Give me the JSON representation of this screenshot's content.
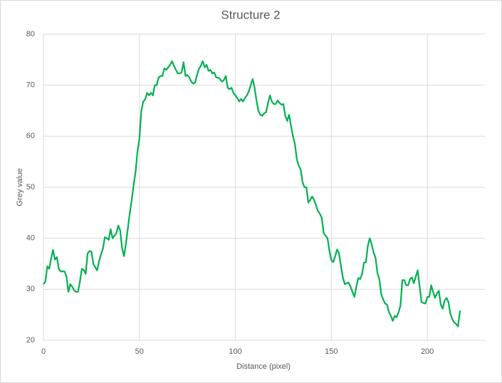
{
  "chart_data": {
    "type": "line",
    "title": "Structure 2",
    "x_label": "Distance (pixel)",
    "y_label": "Grey value",
    "x": [
      0,
      1,
      2,
      3,
      4,
      5,
      6,
      7,
      8,
      9,
      10,
      11,
      12,
      13,
      14,
      15,
      16,
      17,
      18,
      19,
      20,
      21,
      22,
      23,
      24,
      25,
      26,
      27,
      28,
      29,
      30,
      31,
      32,
      33,
      34,
      35,
      36,
      37,
      38,
      39,
      40,
      41,
      42,
      43,
      44,
      45,
      46,
      47,
      48,
      49,
      50,
      51,
      52,
      53,
      54,
      55,
      56,
      57,
      58,
      59,
      60,
      61,
      62,
      63,
      64,
      65,
      66,
      67,
      68,
      69,
      70,
      71,
      72,
      73,
      74,
      75,
      76,
      77,
      78,
      79,
      80,
      81,
      82,
      83,
      84,
      85,
      86,
      87,
      88,
      89,
      90,
      91,
      92,
      93,
      94,
      95,
      96,
      97,
      98,
      99,
      100,
      101,
      102,
      103,
      104,
      105,
      106,
      107,
      108,
      109,
      110,
      111,
      112,
      113,
      114,
      115,
      116,
      117,
      118,
      119,
      120,
      121,
      122,
      123,
      124,
      125,
      126,
      127,
      128,
      129,
      130,
      131,
      132,
      133,
      134,
      135,
      136,
      137,
      138,
      139,
      140,
      141,
      142,
      143,
      144,
      145,
      146,
      147,
      148,
      149,
      150,
      151,
      152,
      153,
      154,
      155,
      156,
      157,
      158,
      159,
      160,
      161,
      162,
      163,
      164,
      165,
      166,
      167,
      168,
      169,
      170,
      171,
      172,
      173,
      174,
      175,
      176,
      177,
      178,
      179,
      180,
      181,
      182,
      183,
      184,
      185,
      186,
      187,
      188,
      189,
      190,
      191,
      192,
      193,
      194,
      195,
      196,
      197,
      198,
      199,
      200,
      201,
      202,
      203,
      204,
      205,
      206,
      207,
      208,
      209,
      210,
      211,
      212,
      213,
      214,
      215,
      216,
      217
    ],
    "series": [
      {
        "name": "Grey value",
        "color": "#00b050",
        "values": [
          31,
          31.5,
          34.5,
          34,
          36,
          37.7,
          35.8,
          36.3,
          34,
          33.5,
          33.5,
          33.5,
          32.5,
          29.5,
          31,
          30.5,
          29.8,
          29.5,
          29.5,
          31.5,
          34,
          33.8,
          33,
          37,
          37.5,
          37.4,
          35,
          34.3,
          33.7,
          35.5,
          36.8,
          38,
          40.2,
          40,
          39.7,
          41.8,
          40,
          40.5,
          41,
          42.5,
          41.5,
          38,
          36.5,
          39,
          42,
          45,
          47.5,
          50.5,
          53,
          57,
          59.5,
          65,
          66.8,
          67.2,
          68.5,
          68,
          68.5,
          68,
          70,
          70,
          71.5,
          71.8,
          71.8,
          73.3,
          73,
          73.5,
          74,
          74.7,
          73.8,
          73,
          72.3,
          72.3,
          72.5,
          74.5,
          71.8,
          72,
          71.5,
          70.7,
          70.3,
          70.5,
          72,
          73.2,
          73.8,
          74.7,
          73.5,
          74,
          72.8,
          73,
          72.3,
          72.5,
          71.5,
          71.5,
          71.2,
          70.7,
          71,
          71.8,
          69.5,
          69.2,
          69.5,
          68.5,
          68,
          67.5,
          66.8,
          67.3,
          66.8,
          67.5,
          68,
          68.8,
          70,
          71.2,
          69.5,
          67,
          65,
          64.2,
          64,
          64.5,
          64.7,
          66.5,
          68,
          66.8,
          66.3,
          66.3,
          67,
          66.5,
          66.2,
          66.3,
          64,
          63,
          64.2,
          62,
          60,
          58.5,
          55.5,
          54.2,
          53.5,
          51,
          50,
          50,
          47,
          47.5,
          48.2,
          47.5,
          46.5,
          45.3,
          44.8,
          44,
          41,
          40.5,
          40,
          37.5,
          35.7,
          35.3,
          36.5,
          37.8,
          37,
          34.5,
          32.3,
          31,
          31.2,
          31.3,
          30.5,
          29.5,
          28.5,
          30.5,
          32.2,
          32,
          33,
          35.2,
          35.3,
          38.5,
          40,
          38.8,
          37.2,
          36.2,
          33.2,
          32,
          29,
          28,
          27.2,
          27,
          25.5,
          24.8,
          23.8,
          24.8,
          24.5,
          25.5,
          26.8,
          31.8,
          31.8,
          30.8,
          30.8,
          32,
          32.3,
          31.2,
          32.5,
          33.7,
          30.5,
          27.5,
          27.3,
          27.2,
          28.5,
          28.5,
          30.8,
          29.5,
          28.3,
          29.2,
          29.7,
          27,
          26.2,
          27.8,
          28.3,
          27.5,
          25.2,
          24.2,
          23.5,
          23.2,
          22.7,
          25.8
        ]
      }
    ],
    "xlim": [
      0,
      230
    ],
    "xticks": [
      0,
      50,
      100,
      150,
      200
    ],
    "ylim": [
      20,
      80
    ],
    "yticks": [
      20,
      30,
      40,
      50,
      60,
      70,
      80
    ],
    "grid": true
  }
}
